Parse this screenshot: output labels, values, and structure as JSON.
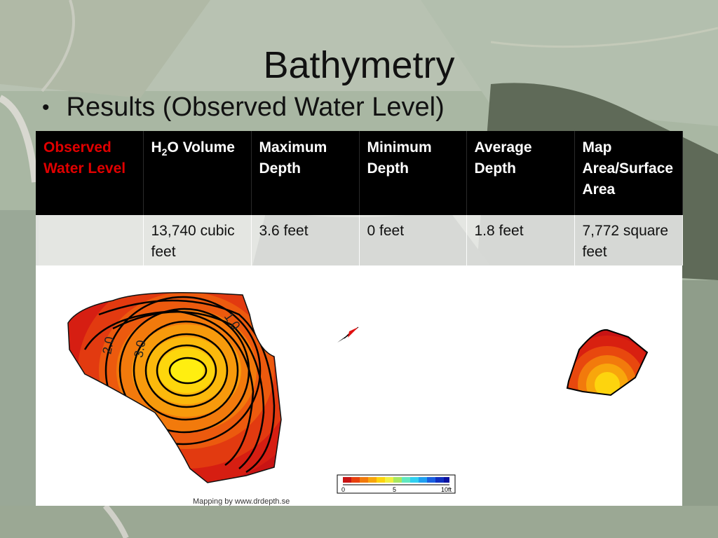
{
  "slide": {
    "title": "Bathymetry",
    "bullet": "Results (Observed Water Level)"
  },
  "table": {
    "headers": [
      {
        "text": "Observed Water Level"
      },
      {
        "pre": "H",
        "sub": "2",
        "post": "O Volume"
      },
      {
        "text": "Maximum Depth"
      },
      {
        "text": "Minimum Depth"
      },
      {
        "text": "Average Depth"
      },
      {
        "text": "Map Area/Surface Area"
      }
    ],
    "row": [
      "",
      "13,740 cubic feet",
      "3.6 feet",
      "0 feet",
      "1.8 feet",
      "7,772 square feet"
    ]
  },
  "map": {
    "contour_labels": [
      "1.0",
      "2.0",
      "3.0"
    ],
    "scale_labels": [
      "0",
      "5",
      "10ft"
    ],
    "credit": "Mapping by www.drdepth.se"
  }
}
